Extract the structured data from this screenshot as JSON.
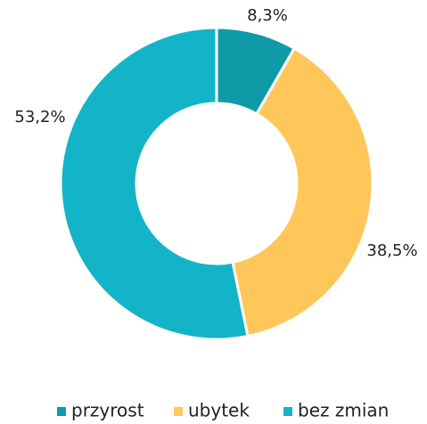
{
  "chart_data": {
    "type": "donut",
    "categories": [
      "przyrost",
      "ubytek",
      "bez zmian"
    ],
    "values": [
      8.3,
      38.5,
      53.2
    ],
    "value_labels": [
      "8,3%",
      "38,5%",
      "53,2%"
    ],
    "colors": [
      "#0f9aa8",
      "#ffc65a",
      "#14b4c8"
    ],
    "legend": "bottom"
  }
}
